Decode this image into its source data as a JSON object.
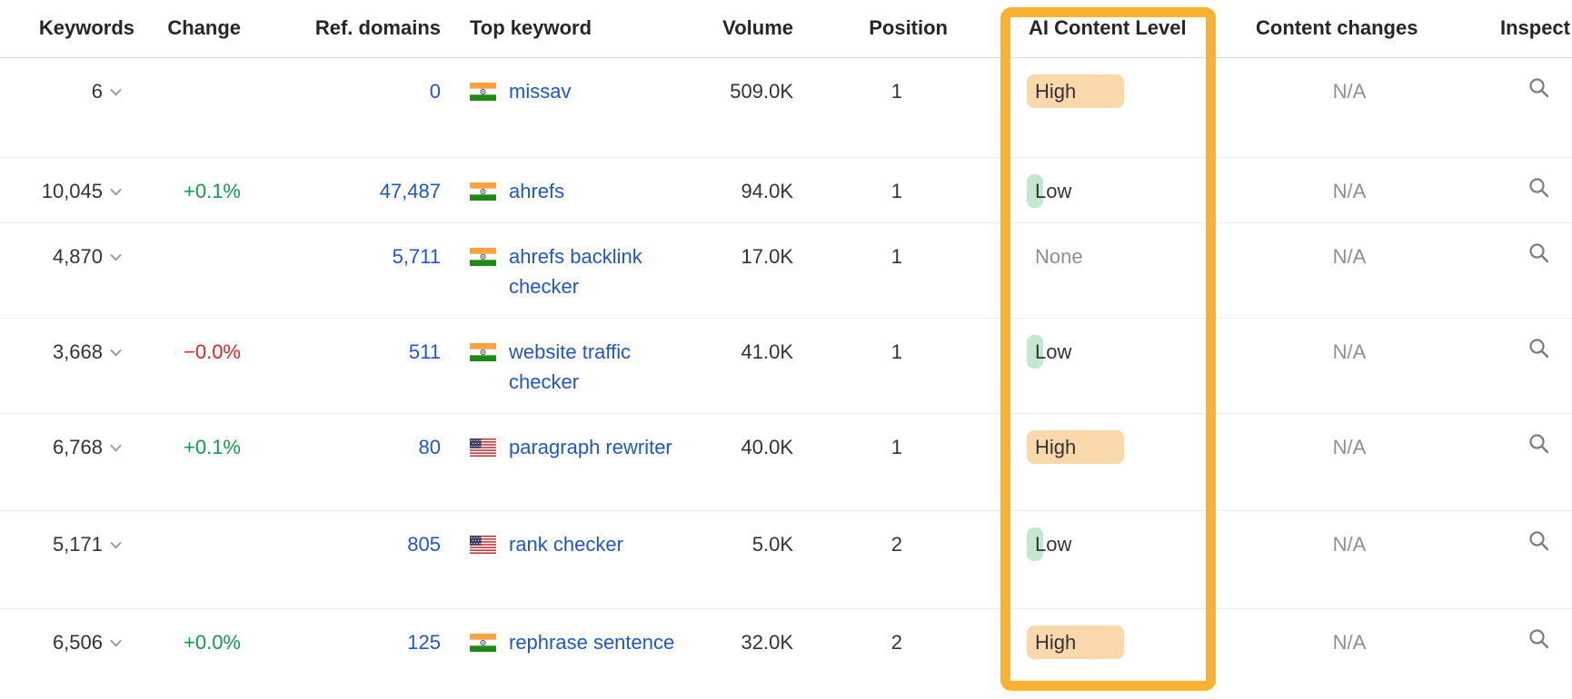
{
  "table": {
    "columns": [
      {
        "key": "keywords",
        "label": "Keywords"
      },
      {
        "key": "change",
        "label": "Change"
      },
      {
        "key": "ref_domains",
        "label": "Ref. domains"
      },
      {
        "key": "top_keyword",
        "label": "Top keyword"
      },
      {
        "key": "volume",
        "label": "Volume"
      },
      {
        "key": "position",
        "label": "Position"
      },
      {
        "key": "ai_content_level",
        "label": "AI Content Level"
      },
      {
        "key": "content_changes",
        "label": "Content changes"
      },
      {
        "key": "inspect",
        "label": "Inspect"
      }
    ],
    "rows": [
      {
        "keywords": "6",
        "change": "",
        "change_dir": null,
        "ref_domains": "0",
        "country": "in",
        "top_keyword": "missav",
        "volume": "509.0K",
        "position": "1",
        "ai_content_level": "High",
        "content_changes": "N/A"
      },
      {
        "keywords": "10,045",
        "change": "+0.1%",
        "change_dir": "up",
        "ref_domains": "47,487",
        "country": "in",
        "top_keyword": "ahrefs",
        "volume": "94.0K",
        "position": "1",
        "ai_content_level": "Low",
        "content_changes": "N/A"
      },
      {
        "keywords": "4,870",
        "change": "",
        "change_dir": null,
        "ref_domains": "5,711",
        "country": "in",
        "top_keyword": "ahrefs backlink checker",
        "volume": "17.0K",
        "position": "1",
        "ai_content_level": "None",
        "content_changes": "N/A"
      },
      {
        "keywords": "3,668",
        "change": "−0.0%",
        "change_dir": "down",
        "ref_domains": "511",
        "country": "in",
        "top_keyword": "website traffic checker",
        "volume": "41.0K",
        "position": "1",
        "ai_content_level": "Low",
        "content_changes": "N/A"
      },
      {
        "keywords": "6,768",
        "change": "+0.1%",
        "change_dir": "up",
        "ref_domains": "80",
        "country": "us",
        "top_keyword": "paragraph rewriter",
        "volume": "40.0K",
        "position": "1",
        "ai_content_level": "High",
        "content_changes": "N/A"
      },
      {
        "keywords": "5,171",
        "change": "",
        "change_dir": null,
        "ref_domains": "805",
        "country": "us",
        "top_keyword": "rank checker",
        "volume": "5.0K",
        "position": "2",
        "ai_content_level": "Low",
        "content_changes": "N/A"
      },
      {
        "keywords": "6,506",
        "change": "+0.0%",
        "change_dir": "up",
        "ref_domains": "125",
        "country": "in",
        "top_keyword": "rephrase sentence",
        "volume": "32.0K",
        "position": "2",
        "ai_content_level": "High",
        "content_changes": "N/A"
      }
    ]
  },
  "annotation": {
    "type": "column-highlight-box",
    "highlighted_column": "AI Content Level",
    "color": "#fab132"
  },
  "colors": {
    "link_blue": "#1f56c8",
    "positive_green": "#11984a",
    "negative_red": "#e02222",
    "ai_high_bg": "#fad8ab",
    "ai_low_bg": "#c3e7d1",
    "muted_gray": "#8f8f8f"
  }
}
